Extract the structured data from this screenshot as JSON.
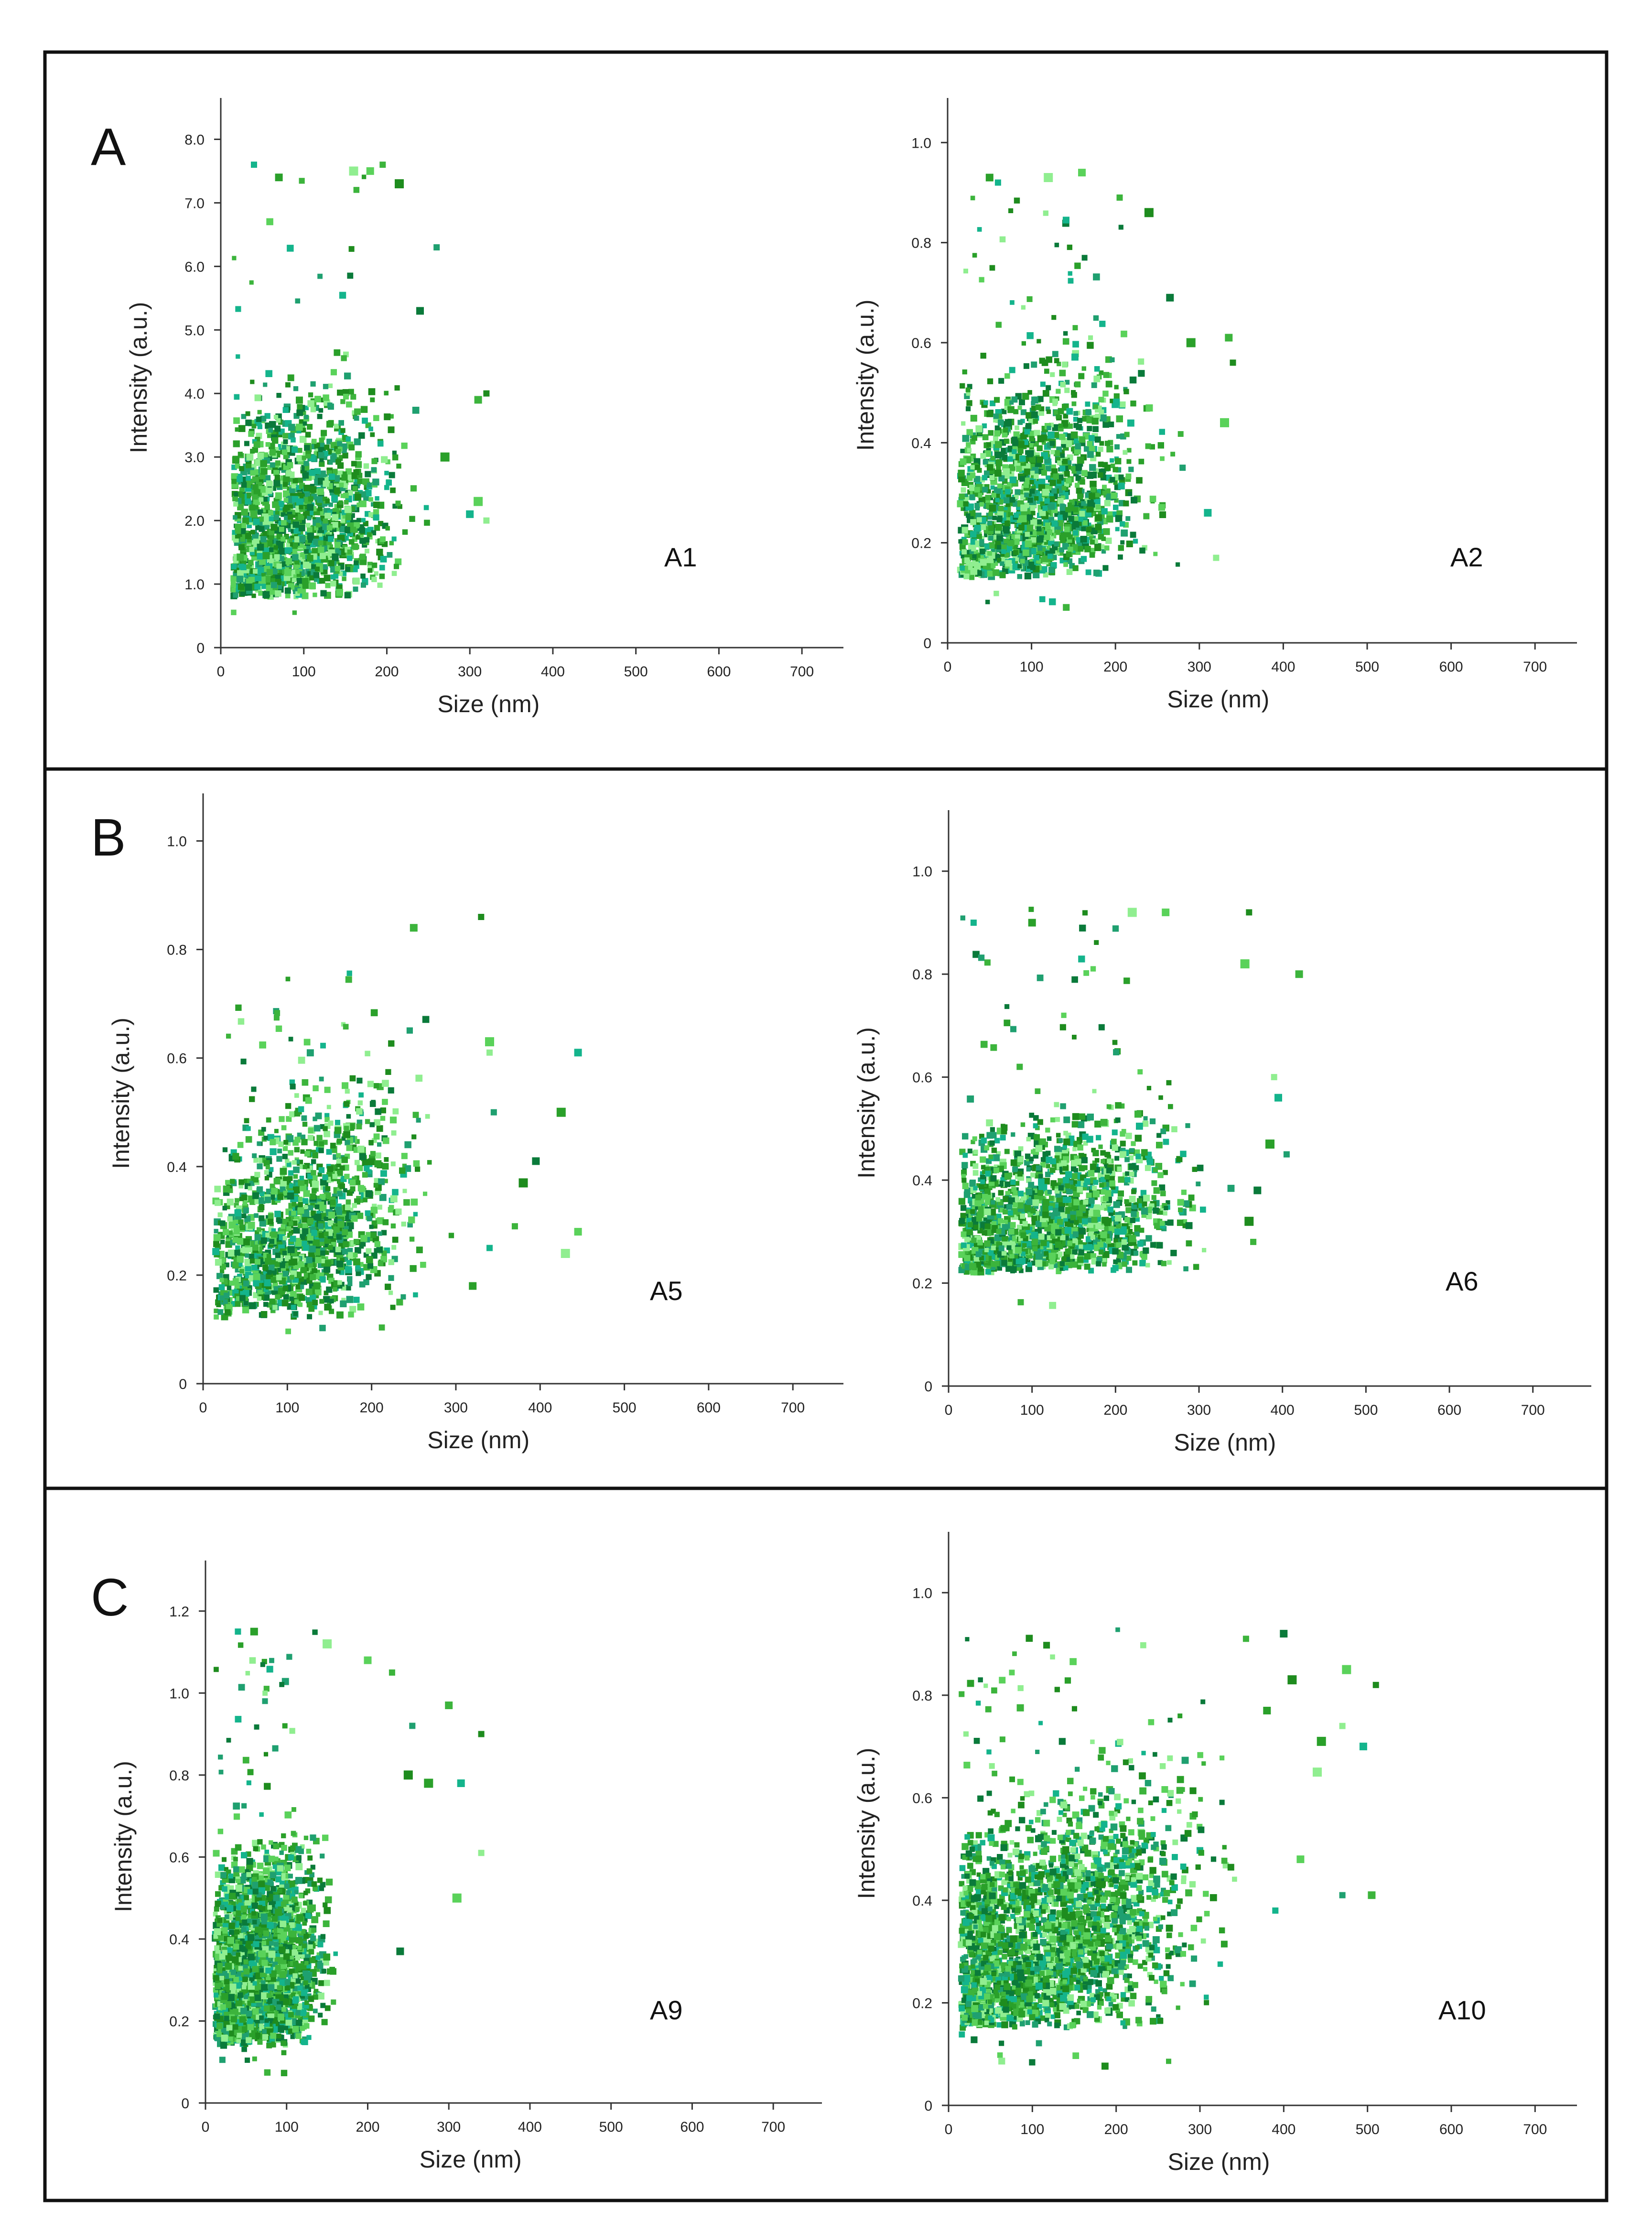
{
  "figure": {
    "rows": [
      {
        "letter": "A",
        "panels": [
          0,
          1
        ]
      },
      {
        "letter": "B",
        "panels": [
          2,
          3
        ]
      },
      {
        "letter": "C",
        "panels": [
          4,
          5
        ]
      }
    ],
    "palette": [
      "#1e8c1e",
      "#3cb43c",
      "#5ad25a",
      "#90ee90",
      "#14b48c",
      "#2aa02a",
      "#1fa070",
      "#0a7a3a"
    ]
  },
  "chart_data": [
    {
      "type": "scatter",
      "label": "A1",
      "xlabel": "Size (nm)",
      "ylabel": "Intensity (a.u.)",
      "xlim": [
        0,
        750
      ],
      "ylim": [
        0,
        8.5
      ],
      "xticks": [
        0,
        100,
        200,
        300,
        400,
        500,
        600,
        700
      ],
      "xtick_labels": [
        "0",
        "100",
        "200",
        "300",
        "400",
        "500",
        "600",
        "700"
      ],
      "yticks": [
        0,
        1,
        2,
        3,
        4,
        5,
        6,
        7,
        8
      ],
      "ytick_labels": [
        "0",
        "1.0",
        "2.0",
        "3.0",
        "4.0",
        "5.0",
        "6.0",
        "7.0",
        "8.0"
      ],
      "cloud": {
        "n": 1600,
        "x_min": 15,
        "x_max": 330,
        "x_mean": 95,
        "x_sd": 55,
        "y_min": 0.4,
        "y_max": 7.7,
        "y_base": 0.8,
        "y_slope": 0.006,
        "y_spread": 1.6
      },
      "outliers": [
        {
          "x": 320,
          "y": 4.0
        },
        {
          "x": 310,
          "y": 3.9
        },
        {
          "x": 310,
          "y": 2.3
        },
        {
          "x": 320,
          "y": 2.0
        },
        {
          "x": 300,
          "y": 2.1
        },
        {
          "x": 270,
          "y": 3.0
        },
        {
          "x": 260,
          "y": 6.3
        },
        {
          "x": 240,
          "y": 5.3
        },
        {
          "x": 215,
          "y": 7.3
        },
        {
          "x": 195,
          "y": 7.6
        },
        {
          "x": 180,
          "y": 7.5
        },
        {
          "x": 160,
          "y": 7.5
        },
        {
          "x": 40,
          "y": 7.6
        },
        {
          "x": 70,
          "y": 7.4
        }
      ]
    },
    {
      "type": "scatter",
      "label": "A2",
      "xlabel": "Size (nm)",
      "ylabel": "Intensity (a.u.)",
      "xlim": [
        0,
        750
      ],
      "ylim": [
        0,
        1.07
      ],
      "xticks": [
        0,
        100,
        200,
        300,
        400,
        500,
        600,
        700
      ],
      "xtick_labels": [
        "0",
        "100",
        "200",
        "300",
        "400",
        "500",
        "600",
        "700"
      ],
      "yticks": [
        0,
        0.2,
        0.4,
        0.6,
        0.8,
        1.0
      ],
      "ytick_labels": [
        "0",
        "0.2",
        "0.4",
        "0.6",
        "0.8",
        "1.0"
      ],
      "cloud": {
        "n": 1600,
        "x_min": 15,
        "x_max": 345,
        "x_mean": 105,
        "x_sd": 60,
        "y_min": 0.07,
        "y_max": 0.94,
        "y_base": 0.13,
        "y_slope": 0.0009,
        "y_spread": 0.2
      },
      "outliers": [
        {
          "x": 340,
          "y": 0.56
        },
        {
          "x": 335,
          "y": 0.61
        },
        {
          "x": 330,
          "y": 0.44
        },
        {
          "x": 320,
          "y": 0.17
        },
        {
          "x": 310,
          "y": 0.26
        },
        {
          "x": 290,
          "y": 0.6
        },
        {
          "x": 280,
          "y": 0.35
        },
        {
          "x": 265,
          "y": 0.69
        },
        {
          "x": 240,
          "y": 0.86
        },
        {
          "x": 205,
          "y": 0.89
        },
        {
          "x": 160,
          "y": 0.94
        },
        {
          "x": 120,
          "y": 0.93
        },
        {
          "x": 60,
          "y": 0.92
        },
        {
          "x": 50,
          "y": 0.93
        }
      ]
    },
    {
      "type": "scatter",
      "label": "A5",
      "xlabel": "Size (nm)",
      "ylabel": "Intensity (a.u.)",
      "xlim": [
        0,
        760
      ],
      "ylim": [
        0,
        1.07
      ],
      "xticks": [
        0,
        100,
        200,
        300,
        400,
        500,
        600,
        700
      ],
      "xtick_labels": [
        "0",
        "100",
        "200",
        "300",
        "400",
        "500",
        "600",
        "700"
      ],
      "yticks": [
        0,
        0.2,
        0.4,
        0.6,
        0.8,
        1.0
      ],
      "ytick_labels": [
        "0",
        "0.2",
        "0.4",
        "0.6",
        "0.8",
        "1.0"
      ],
      "cloud": {
        "n": 1500,
        "x_min": 15,
        "x_max": 320,
        "x_mean": 115,
        "x_sd": 60,
        "y_min": 0.07,
        "y_max": 0.76,
        "y_base": 0.12,
        "y_slope": 0.0012,
        "y_spread": 0.17
      },
      "outliers": [
        {
          "x": 330,
          "y": 0.86
        },
        {
          "x": 250,
          "y": 0.84
        },
        {
          "x": 340,
          "y": 0.63
        },
        {
          "x": 340,
          "y": 0.61
        },
        {
          "x": 445,
          "y": 0.61
        },
        {
          "x": 425,
          "y": 0.5
        },
        {
          "x": 345,
          "y": 0.5
        },
        {
          "x": 395,
          "y": 0.41
        },
        {
          "x": 380,
          "y": 0.37
        },
        {
          "x": 370,
          "y": 0.29
        },
        {
          "x": 445,
          "y": 0.28
        },
        {
          "x": 430,
          "y": 0.24
        },
        {
          "x": 340,
          "y": 0.25
        },
        {
          "x": 320,
          "y": 0.18
        }
      ]
    },
    {
      "type": "scatter",
      "label": "A6",
      "xlabel": "Size (nm)",
      "ylabel": "Intensity (a.u.)",
      "xlim": [
        0,
        770
      ],
      "ylim": [
        0,
        1.1
      ],
      "xticks": [
        0,
        100,
        200,
        300,
        400,
        500,
        600,
        700
      ],
      "xtick_labels": [
        "0",
        "100",
        "200",
        "300",
        "400",
        "500",
        "600",
        "700"
      ],
      "yticks": [
        0,
        0.2,
        0.4,
        0.6,
        0.8,
        1.0
      ],
      "ytick_labels": [
        "0",
        "0.2",
        "0.4",
        "0.6",
        "0.8",
        "1.0"
      ],
      "cloud": {
        "n": 1600,
        "x_min": 15,
        "x_max": 390,
        "x_mean": 120,
        "x_sd": 75,
        "y_min": 0.15,
        "y_max": 0.93,
        "y_base": 0.22,
        "y_slope": 0.0005,
        "y_spread": 0.14
      },
      "outliers": [
        {
          "x": 360,
          "y": 0.92
        },
        {
          "x": 420,
          "y": 0.8
        },
        {
          "x": 355,
          "y": 0.82
        },
        {
          "x": 390,
          "y": 0.6
        },
        {
          "x": 395,
          "y": 0.56
        },
        {
          "x": 385,
          "y": 0.47
        },
        {
          "x": 405,
          "y": 0.45
        },
        {
          "x": 370,
          "y": 0.38
        },
        {
          "x": 360,
          "y": 0.32
        },
        {
          "x": 365,
          "y": 0.28
        },
        {
          "x": 260,
          "y": 0.92
        },
        {
          "x": 220,
          "y": 0.92
        },
        {
          "x": 30,
          "y": 0.9
        },
        {
          "x": 100,
          "y": 0.9
        }
      ]
    },
    {
      "type": "scatter",
      "label": "A9",
      "xlabel": "Size (nm)",
      "ylabel": "Intensity (a.u.)",
      "xlim": [
        0,
        760
      ],
      "ylim": [
        0,
        1.3
      ],
      "xticks": [
        0,
        100,
        200,
        300,
        400,
        500,
        600,
        700
      ],
      "xtick_labels": [
        "0",
        "100",
        "200",
        "300",
        "400",
        "500",
        "600",
        "700"
      ],
      "yticks": [
        0,
        0.2,
        0.4,
        0.6,
        0.8,
        1.0,
        1.2
      ],
      "ytick_labels": [
        "0",
        "0.2",
        "0.4",
        "0.6",
        "0.8",
        "1.0",
        "1.2"
      ],
      "cloud": {
        "n": 2600,
        "x_min": 12,
        "x_max": 250,
        "x_mean": 65,
        "x_sd": 35,
        "y_min": 0.07,
        "y_max": 1.15,
        "y_base": 0.14,
        "y_slope": 0.0016,
        "y_spread": 0.22
      },
      "outliers": [
        {
          "x": 340,
          "y": 0.9
        },
        {
          "x": 300,
          "y": 0.97
        },
        {
          "x": 310,
          "y": 0.5
        },
        {
          "x": 340,
          "y": 0.61
        },
        {
          "x": 315,
          "y": 0.78
        },
        {
          "x": 275,
          "y": 0.78
        },
        {
          "x": 255,
          "y": 0.92
        },
        {
          "x": 240,
          "y": 0.37
        },
        {
          "x": 250,
          "y": 0.8
        },
        {
          "x": 230,
          "y": 1.05
        },
        {
          "x": 200,
          "y": 1.08
        },
        {
          "x": 150,
          "y": 1.12
        },
        {
          "x": 40,
          "y": 1.15
        },
        {
          "x": 60,
          "y": 1.15
        }
      ]
    },
    {
      "type": "scatter",
      "label": "A10",
      "xlabel": "Size (nm)",
      "ylabel": "Intensity (a.u.)",
      "xlim": [
        0,
        750
      ],
      "ylim": [
        0,
        1.1
      ],
      "xticks": [
        0,
        100,
        200,
        300,
        400,
        500,
        600,
        700
      ],
      "xtick_labels": [
        "0",
        "100",
        "200",
        "300",
        "400",
        "500",
        "600",
        "700"
      ],
      "yticks": [
        0,
        0.2,
        0.4,
        0.6,
        0.8,
        1.0
      ],
      "ytick_labels": [
        "0",
        "0.2",
        "0.4",
        "0.6",
        "0.8",
        "1.0"
      ],
      "cloud": {
        "n": 2600,
        "x_min": 15,
        "x_max": 500,
        "x_mean": 110,
        "x_sd": 85,
        "y_min": 0.07,
        "y_max": 0.93,
        "y_base": 0.15,
        "y_slope": 0.0011,
        "y_spread": 0.2
      },
      "outliers": [
        {
          "x": 510,
          "y": 0.82
        },
        {
          "x": 505,
          "y": 0.41
        },
        {
          "x": 475,
          "y": 0.85
        },
        {
          "x": 470,
          "y": 0.74
        },
        {
          "x": 495,
          "y": 0.7
        },
        {
          "x": 445,
          "y": 0.71
        },
        {
          "x": 470,
          "y": 0.41
        },
        {
          "x": 400,
          "y": 0.92
        },
        {
          "x": 410,
          "y": 0.83
        },
        {
          "x": 355,
          "y": 0.91
        },
        {
          "x": 420,
          "y": 0.48
        },
        {
          "x": 440,
          "y": 0.65
        },
        {
          "x": 390,
          "y": 0.38
        },
        {
          "x": 380,
          "y": 0.77
        }
      ]
    }
  ]
}
